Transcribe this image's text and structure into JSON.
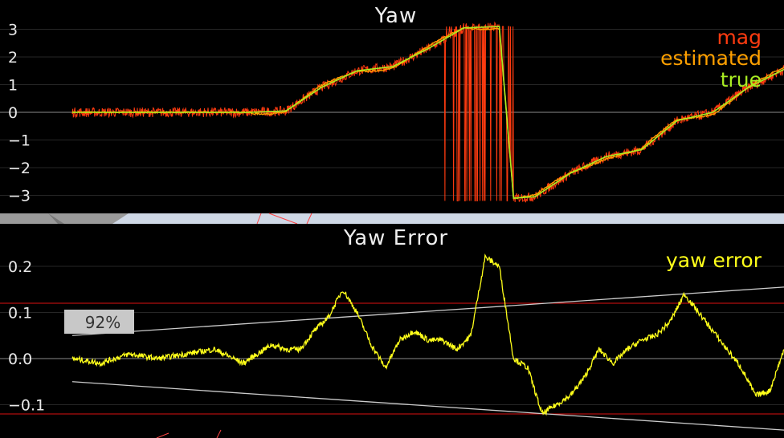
{
  "chart_data": [
    {
      "type": "line",
      "title": "Yaw",
      "xlabel": "",
      "ylabel": "",
      "ylim": [
        -3.3,
        3.4
      ],
      "yticks": [
        3,
        2,
        1,
        0,
        -1,
        -2,
        -3
      ],
      "ytick_labels": [
        "3",
        "2",
        "1",
        "0",
        "−1",
        "−2",
        "−3"
      ],
      "zero_line": true,
      "grid": false,
      "legend_placement": "top-right",
      "series": [
        {
          "name": "mag",
          "color": "#ff3b10"
        },
        {
          "name": "estimated",
          "color": "#ffa000"
        },
        {
          "name": "true",
          "color": "#aaee22"
        }
      ],
      "x": [
        0,
        0.1,
        0.2,
        0.25,
        0.3,
        0.35,
        0.4,
        0.45,
        0.5,
        0.55,
        0.6,
        0.62,
        0.65,
        0.7,
        0.75,
        0.8,
        0.85,
        0.9,
        0.95,
        1.0
      ],
      "true_yaw": [
        0,
        0,
        0,
        0,
        0.05,
        0.9,
        1.5,
        1.65,
        2.3,
        3.05,
        3.1,
        -3.1,
        -3.05,
        -2.2,
        -1.6,
        -1.35,
        -0.3,
        0.0,
        0.9,
        1.55
      ],
      "wrap_glitch_x_range": [
        0.52,
        0.62
      ]
    },
    {
      "type": "line",
      "title": "Yaw Error",
      "xlabel": "",
      "ylabel": "",
      "ylim": [
        -0.15,
        0.25
      ],
      "yticks": [
        0.2,
        0.1,
        0.0,
        -0.1
      ],
      "ytick_labels": [
        "0.2",
        "0.1",
        "0.0",
        "−0.1"
      ],
      "zero_line": true,
      "threshold_lines": [
        0.12,
        -0.12
      ],
      "threshold_color": "#dd1111",
      "bound_lines": [
        {
          "color": "#cccccc",
          "x": [
            0,
            1
          ],
          "y": [
            0.05,
            0.155
          ]
        },
        {
          "color": "#cccccc",
          "x": [
            0,
            1
          ],
          "y": [
            -0.05,
            -0.155
          ]
        }
      ],
      "badge": "92%",
      "legend_placement": "top-right",
      "series": [
        {
          "name": "yaw error",
          "color": "#ffff1a",
          "x": [
            0,
            0.04,
            0.08,
            0.12,
            0.16,
            0.2,
            0.24,
            0.28,
            0.3,
            0.32,
            0.34,
            0.36,
            0.38,
            0.4,
            0.42,
            0.44,
            0.46,
            0.48,
            0.5,
            0.52,
            0.54,
            0.56,
            0.58,
            0.6,
            0.62,
            0.64,
            0.66,
            0.68,
            0.7,
            0.72,
            0.74,
            0.76,
            0.78,
            0.8,
            0.82,
            0.84,
            0.86,
            0.88,
            0.9,
            0.92,
            0.94,
            0.96,
            0.98,
            1.0
          ],
          "values": [
            0.0,
            -0.01,
            0.01,
            0.0,
            0.01,
            0.02,
            -0.01,
            0.03,
            0.02,
            0.02,
            0.06,
            0.09,
            0.15,
            0.1,
            0.03,
            -0.02,
            0.04,
            0.06,
            0.04,
            0.04,
            0.02,
            0.05,
            0.22,
            0.2,
            0.0,
            -0.02,
            -0.12,
            -0.1,
            -0.08,
            -0.04,
            0.02,
            -0.01,
            0.02,
            0.04,
            0.05,
            0.08,
            0.14,
            0.1,
            0.06,
            0.02,
            -0.02,
            -0.08,
            -0.07,
            0.02
          ]
        }
      ]
    }
  ]
}
